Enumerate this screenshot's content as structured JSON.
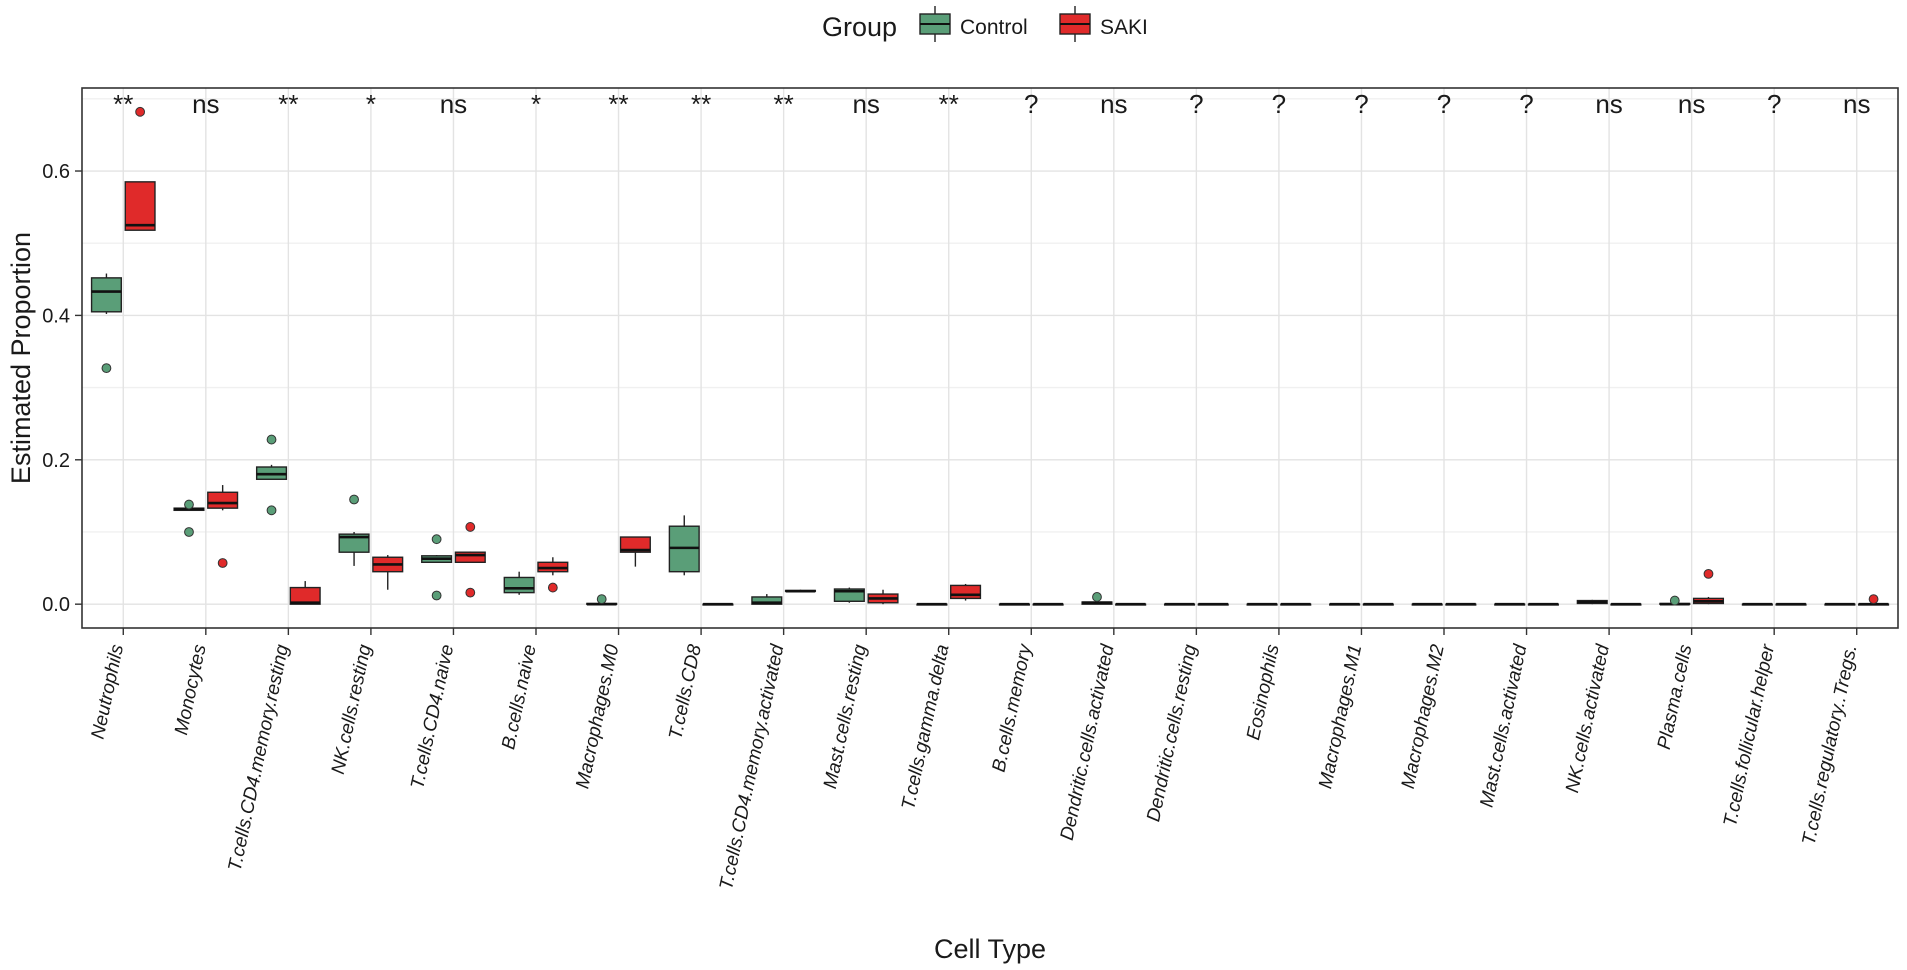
{
  "chart_data": {
    "type": "boxplot",
    "xlabel": "Cell Type",
    "ylabel": "Estimated Proportion",
    "ylim": [
      -0.033,
      0.715
    ],
    "y_ticks": [
      0.0,
      0.2,
      0.4,
      0.6
    ],
    "y_tick_labels": [
      "0.0",
      "0.2",
      "0.4",
      "0.6"
    ],
    "grid": true,
    "legend": {
      "title": "Group",
      "position": "top",
      "entries": [
        {
          "name": "Control",
          "color": "#5a9e78"
        },
        {
          "name": "SAKI",
          "color": "#e02a2a"
        }
      ]
    },
    "categories": [
      "Neutrophils",
      "Monocytes",
      "T.cells.CD4.memory.resting",
      "NK.cells.resting",
      "T.cells.CD4.naive",
      "B.cells.naive",
      "Macrophages.M0",
      "T.cells.CD8",
      "T.cells.CD4.memory.activated",
      "Mast.cells.resting",
      "T.cells.gamma.delta",
      "B.cells.memory",
      "Dendritic.cells.activated",
      "Dendritic.cells.resting",
      "Eosinophils",
      "Macrophages.M1",
      "Macrophages.M2",
      "Mast.cells.activated",
      "NK.cells.activated",
      "Plasma.cells",
      "T.cells.follicular.helper",
      "T.cells.regulatory..Tregs."
    ],
    "significance": [
      "**",
      "ns",
      "**",
      "*",
      "ns",
      "*",
      "**",
      "**",
      "**",
      "ns",
      "**",
      "?",
      "ns",
      "?",
      "?",
      "?",
      "?",
      "?",
      "ns",
      "ns",
      "?",
      "ns"
    ],
    "series": [
      {
        "name": "Control",
        "boxes": [
          {
            "min": 0.402,
            "q1": 0.405,
            "median": 0.433,
            "q3": 0.452,
            "max": 0.458,
            "outliers": [
              0.327
            ]
          },
          {
            "min": 0.13,
            "q1": 0.13,
            "median": 0.132,
            "q3": 0.133,
            "max": 0.135,
            "outliers": [
              0.138,
              0.1
            ]
          },
          {
            "min": 0.173,
            "q1": 0.173,
            "median": 0.18,
            "q3": 0.19,
            "max": 0.193,
            "outliers": [
              0.228,
              0.13
            ]
          },
          {
            "min": 0.053,
            "q1": 0.072,
            "median": 0.093,
            "q3": 0.097,
            "max": 0.1,
            "outliers": [
              0.145
            ]
          },
          {
            "min": 0.058,
            "q1": 0.058,
            "median": 0.063,
            "q3": 0.067,
            "max": 0.068,
            "outliers": [
              0.09,
              0.012
            ]
          },
          {
            "min": 0.013,
            "q1": 0.016,
            "median": 0.022,
            "q3": 0.037,
            "max": 0.045,
            "outliers": []
          },
          {
            "min": 0.0,
            "q1": 0.0,
            "median": 0.0,
            "q3": 0.001,
            "max": 0.002,
            "outliers": [
              0.007
            ]
          },
          {
            "min": 0.04,
            "q1": 0.045,
            "median": 0.078,
            "q3": 0.108,
            "max": 0.123,
            "outliers": []
          },
          {
            "min": 0.0,
            "q1": 0.0,
            "median": 0.002,
            "q3": 0.01,
            "max": 0.014,
            "outliers": []
          },
          {
            "min": 0.002,
            "q1": 0.004,
            "median": 0.018,
            "q3": 0.021,
            "max": 0.023,
            "outliers": []
          },
          {
            "min": 0.0,
            "q1": 0.0,
            "median": 0.0,
            "q3": 0.0,
            "max": 0.0,
            "outliers": []
          },
          {
            "min": 0.0,
            "q1": 0.0,
            "median": 0.0,
            "q3": 0.0,
            "max": 0.0,
            "outliers": []
          },
          {
            "min": 0.0,
            "q1": 0.0,
            "median": 0.002,
            "q3": 0.003,
            "max": 0.004,
            "outliers": [
              0.01
            ]
          },
          {
            "min": 0.0,
            "q1": 0.0,
            "median": 0.0,
            "q3": 0.0,
            "max": 0.0,
            "outliers": []
          },
          {
            "min": 0.0,
            "q1": 0.0,
            "median": 0.0,
            "q3": 0.0,
            "max": 0.0,
            "outliers": []
          },
          {
            "min": 0.0,
            "q1": 0.0,
            "median": 0.0,
            "q3": 0.0,
            "max": 0.0,
            "outliers": []
          },
          {
            "min": 0.0,
            "q1": 0.0,
            "median": 0.0,
            "q3": 0.0,
            "max": 0.0,
            "outliers": []
          },
          {
            "min": 0.0,
            "q1": 0.0,
            "median": 0.0,
            "q3": 0.0,
            "max": 0.0,
            "outliers": []
          },
          {
            "min": 0.0,
            "q1": 0.001,
            "median": 0.003,
            "q3": 0.005,
            "max": 0.006,
            "outliers": []
          },
          {
            "min": 0.0,
            "q1": 0.0,
            "median": 0.0,
            "q3": 0.001,
            "max": 0.002,
            "outliers": [
              0.005
            ]
          },
          {
            "min": 0.0,
            "q1": 0.0,
            "median": 0.0,
            "q3": 0.0,
            "max": 0.0,
            "outliers": []
          },
          {
            "min": 0.0,
            "q1": 0.0,
            "median": 0.0,
            "q3": 0.0,
            "max": 0.0,
            "outliers": []
          }
        ]
      },
      {
        "name": "SAKI",
        "boxes": [
          {
            "min": 0.518,
            "q1": 0.518,
            "median": 0.525,
            "q3": 0.585,
            "max": 0.585,
            "outliers": [
              0.682
            ]
          },
          {
            "min": 0.13,
            "q1": 0.133,
            "median": 0.14,
            "q3": 0.155,
            "max": 0.165,
            "outliers": [
              0.057
            ]
          },
          {
            "min": 0.0,
            "q1": 0.0,
            "median": 0.002,
            "q3": 0.023,
            "max": 0.032,
            "outliers": []
          },
          {
            "min": 0.02,
            "q1": 0.045,
            "median": 0.055,
            "q3": 0.065,
            "max": 0.068,
            "outliers": []
          },
          {
            "min": 0.058,
            "q1": 0.058,
            "median": 0.068,
            "q3": 0.072,
            "max": 0.073,
            "outliers": [
              0.107,
              0.016
            ]
          },
          {
            "min": 0.04,
            "q1": 0.045,
            "median": 0.05,
            "q3": 0.058,
            "max": 0.065,
            "outliers": [
              0.023
            ]
          },
          {
            "min": 0.052,
            "q1": 0.072,
            "median": 0.075,
            "q3": 0.093,
            "max": 0.093,
            "outliers": []
          },
          {
            "min": 0.0,
            "q1": 0.0,
            "median": 0.0,
            "q3": 0.0,
            "max": 0.0,
            "outliers": []
          },
          {
            "min": 0.018,
            "q1": 0.018,
            "median": 0.018,
            "q3": 0.019,
            "max": 0.02,
            "outliers": []
          },
          {
            "min": 0.0,
            "q1": 0.002,
            "median": 0.008,
            "q3": 0.014,
            "max": 0.02,
            "outliers": []
          },
          {
            "min": 0.005,
            "q1": 0.008,
            "median": 0.013,
            "q3": 0.026,
            "max": 0.028,
            "outliers": []
          },
          {
            "min": 0.0,
            "q1": 0.0,
            "median": 0.0,
            "q3": 0.0,
            "max": 0.0,
            "outliers": []
          },
          {
            "min": 0.0,
            "q1": 0.0,
            "median": 0.0,
            "q3": 0.0,
            "max": 0.0,
            "outliers": []
          },
          {
            "min": 0.0,
            "q1": 0.0,
            "median": 0.0,
            "q3": 0.0,
            "max": 0.0,
            "outliers": []
          },
          {
            "min": 0.0,
            "q1": 0.0,
            "median": 0.0,
            "q3": 0.0,
            "max": 0.0,
            "outliers": []
          },
          {
            "min": 0.0,
            "q1": 0.0,
            "median": 0.0,
            "q3": 0.0,
            "max": 0.0,
            "outliers": []
          },
          {
            "min": 0.0,
            "q1": 0.0,
            "median": 0.0,
            "q3": 0.0,
            "max": 0.0,
            "outliers": []
          },
          {
            "min": 0.0,
            "q1": 0.0,
            "median": 0.0,
            "q3": 0.0,
            "max": 0.0,
            "outliers": []
          },
          {
            "min": 0.0,
            "q1": 0.0,
            "median": 0.0,
            "q3": 0.0,
            "max": 0.0,
            "outliers": []
          },
          {
            "min": 0.0,
            "q1": 0.001,
            "median": 0.004,
            "q3": 0.008,
            "max": 0.01,
            "outliers": [
              0.042
            ]
          },
          {
            "min": 0.0,
            "q1": 0.0,
            "median": 0.0,
            "q3": 0.0,
            "max": 0.0,
            "outliers": []
          },
          {
            "min": 0.0,
            "q1": 0.0,
            "median": 0.0,
            "q3": 0.0,
            "max": 0.0,
            "outliers": [
              0.007
            ]
          }
        ]
      }
    ]
  }
}
